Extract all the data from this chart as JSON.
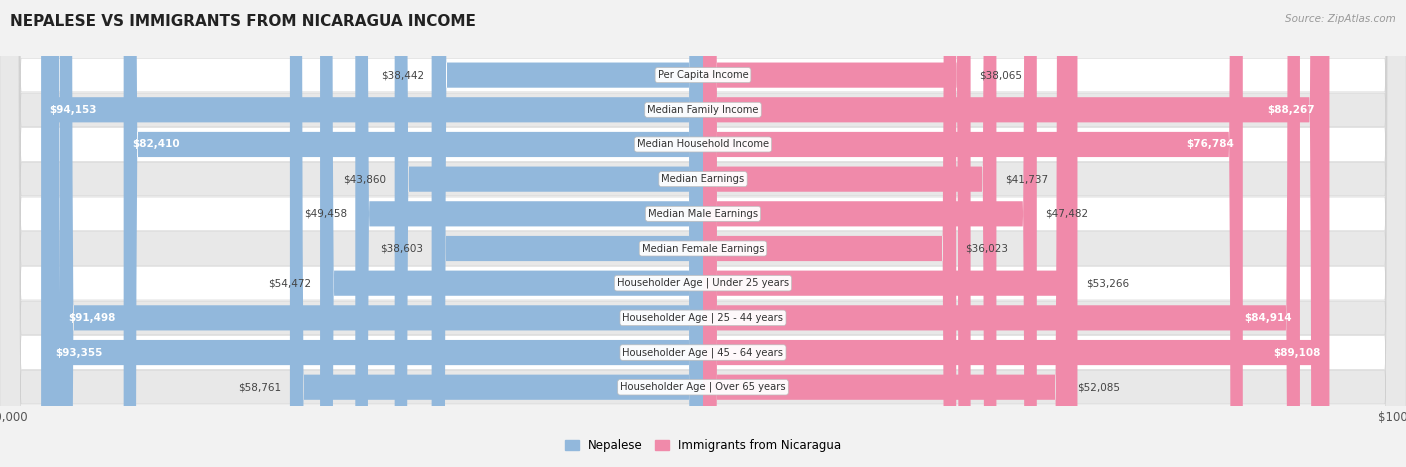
{
  "title": "NEPALESE VS IMMIGRANTS FROM NICARAGUA INCOME",
  "source": "Source: ZipAtlas.com",
  "categories": [
    "Per Capita Income",
    "Median Family Income",
    "Median Household Income",
    "Median Earnings",
    "Median Male Earnings",
    "Median Female Earnings",
    "Householder Age | Under 25 years",
    "Householder Age | 25 - 44 years",
    "Householder Age | 45 - 64 years",
    "Householder Age | Over 65 years"
  ],
  "nepalese_values": [
    38442,
    94153,
    82410,
    43860,
    49458,
    38603,
    54472,
    91498,
    93355,
    58761
  ],
  "nicaragua_values": [
    38065,
    88267,
    76784,
    41737,
    47482,
    36023,
    53266,
    84914,
    89108,
    52085
  ],
  "nepalese_color": "#92b8dc",
  "nicaragua_color": "#f08aaa",
  "max_value": 100000,
  "background_color": "#f2f2f2",
  "row_colors": [
    "#ffffff",
    "#e8e8e8"
  ],
  "row_border_color": "#cccccc",
  "label_inside_color": "white",
  "label_outside_color": "#444444",
  "center_label_color": "#333333",
  "center_label_bg": "#f5f5f5",
  "legend_nepalese": "Nepalese",
  "legend_nicaragua": "Immigrants from Nicaragua",
  "inside_threshold": 0.62
}
